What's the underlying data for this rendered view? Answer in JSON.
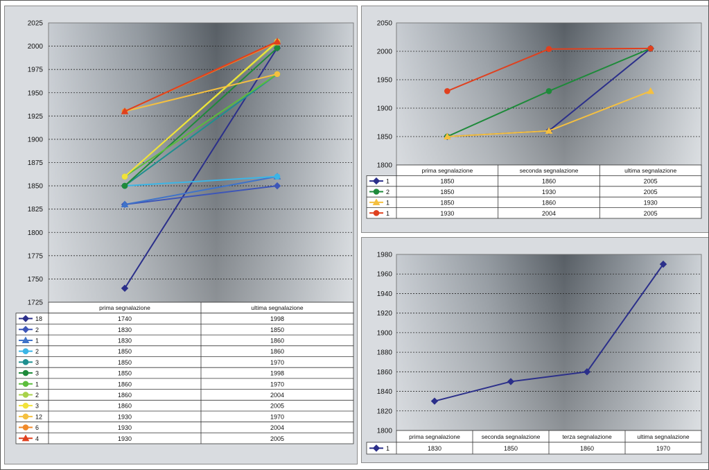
{
  "chart_data": [
    {
      "type": "line",
      "ylim": [
        1725,
        2025
      ],
      "ytick_step": 25,
      "yticks": [
        "1725",
        "1750",
        "1775",
        "1800",
        "1825",
        "1850",
        "1875",
        "1900",
        "1925",
        "1950",
        "1975",
        "2000",
        "2025"
      ],
      "categories": [
        "prima segnalazione",
        "ultima segnalazione"
      ],
      "grid": true,
      "legend": "table-below",
      "series": [
        {
          "name": "18",
          "values": [
            1740,
            1998
          ],
          "color": "#2b2f8a",
          "marker": "diamond",
          "labels": [
            "1740",
            "1998"
          ]
        },
        {
          "name": "2",
          "values": [
            1830,
            1850
          ],
          "color": "#3d56b8",
          "marker": "diamond",
          "labels": [
            "1830",
            "1850"
          ]
        },
        {
          "name": "1",
          "values": [
            1830,
            1860
          ],
          "color": "#3f73c9",
          "marker": "triangle",
          "labels": [
            "1830",
            "1860"
          ]
        },
        {
          "name": "2",
          "values": [
            1850,
            1860
          ],
          "color": "#3bb5e6",
          "marker": "circle",
          "labels": [
            "1850",
            "1860"
          ]
        },
        {
          "name": "3",
          "values": [
            1850,
            1970
          ],
          "color": "#1f8f8f",
          "marker": "circle",
          "labels": [
            "1850",
            "1970"
          ]
        },
        {
          "name": "3",
          "values": [
            1850,
            1998
          ],
          "color": "#1e8a3a",
          "marker": "circle",
          "labels": [
            "1850",
            "1998"
          ]
        },
        {
          "name": "1",
          "values": [
            1860,
            1970
          ],
          "color": "#5cbd3c",
          "marker": "circle",
          "labels": [
            "1860",
            "1970"
          ]
        },
        {
          "name": "2",
          "values": [
            1860,
            2004
          ],
          "color": "#a8d24a",
          "marker": "circle",
          "labels": [
            "1860",
            "2004"
          ]
        },
        {
          "name": "3",
          "values": [
            1860,
            2005
          ],
          "color": "#f2e23a",
          "marker": "circle",
          "labels": [
            "1860",
            "2005"
          ]
        },
        {
          "name": "12",
          "values": [
            1930,
            1970
          ],
          "color": "#f5c040",
          "marker": "circle",
          "labels": [
            "1930",
            "1970"
          ]
        },
        {
          "name": "6",
          "values": [
            1930,
            2004
          ],
          "color": "#f08a2a",
          "marker": "circle",
          "labels": [
            "1930",
            "2004"
          ]
        },
        {
          "name": "4",
          "values": [
            1930,
            2005
          ],
          "color": "#e0401e",
          "marker": "triangle",
          "labels": [
            "1930",
            "2005"
          ]
        }
      ]
    },
    {
      "type": "line",
      "ylim": [
        1800,
        2050
      ],
      "ytick_step": 50,
      "yticks": [
        "1800",
        "1850",
        "1900",
        "1950",
        "2000",
        "2050"
      ],
      "categories": [
        "prima segnalazione",
        "seconda segnalazione",
        "ultima segnalazione"
      ],
      "grid": true,
      "legend": "table-below",
      "series": [
        {
          "name": "1",
          "values": [
            1850,
            1860,
            2005
          ],
          "color": "#2b2f8a",
          "marker": "diamond",
          "labels": [
            "1850",
            "1860",
            "2005"
          ]
        },
        {
          "name": "2",
          "values": [
            1850,
            1930,
            2005
          ],
          "color": "#1e8a3a",
          "marker": "circle",
          "labels": [
            "1850",
            "1930",
            "2005"
          ]
        },
        {
          "name": "1",
          "values": [
            1850,
            1860,
            1930
          ],
          "color": "#f5c040",
          "marker": "triangle",
          "labels": [
            "1850",
            "1860",
            "1930"
          ]
        },
        {
          "name": "1",
          "values": [
            1930,
            2004,
            2005
          ],
          "color": "#e0401e",
          "marker": "circle",
          "labels": [
            "1930",
            "2004",
            "2005"
          ]
        }
      ]
    },
    {
      "type": "line",
      "ylim": [
        1800,
        1980
      ],
      "ytick_step": 20,
      "yticks": [
        "1800",
        "1820",
        "1840",
        "1860",
        "1880",
        "1900",
        "1920",
        "1940",
        "1960",
        "1980"
      ],
      "categories": [
        "prima segnalazione",
        "seconda segnalazione",
        "terza segnalazione",
        "ultima segnalazione"
      ],
      "grid": true,
      "legend": "table-below",
      "series": [
        {
          "name": "1",
          "values": [
            1830,
            1850,
            1860,
            1970
          ],
          "color": "#2b2f8a",
          "marker": "diamond",
          "labels": [
            "1830",
            "1850",
            "1860",
            "1970"
          ]
        }
      ]
    }
  ]
}
